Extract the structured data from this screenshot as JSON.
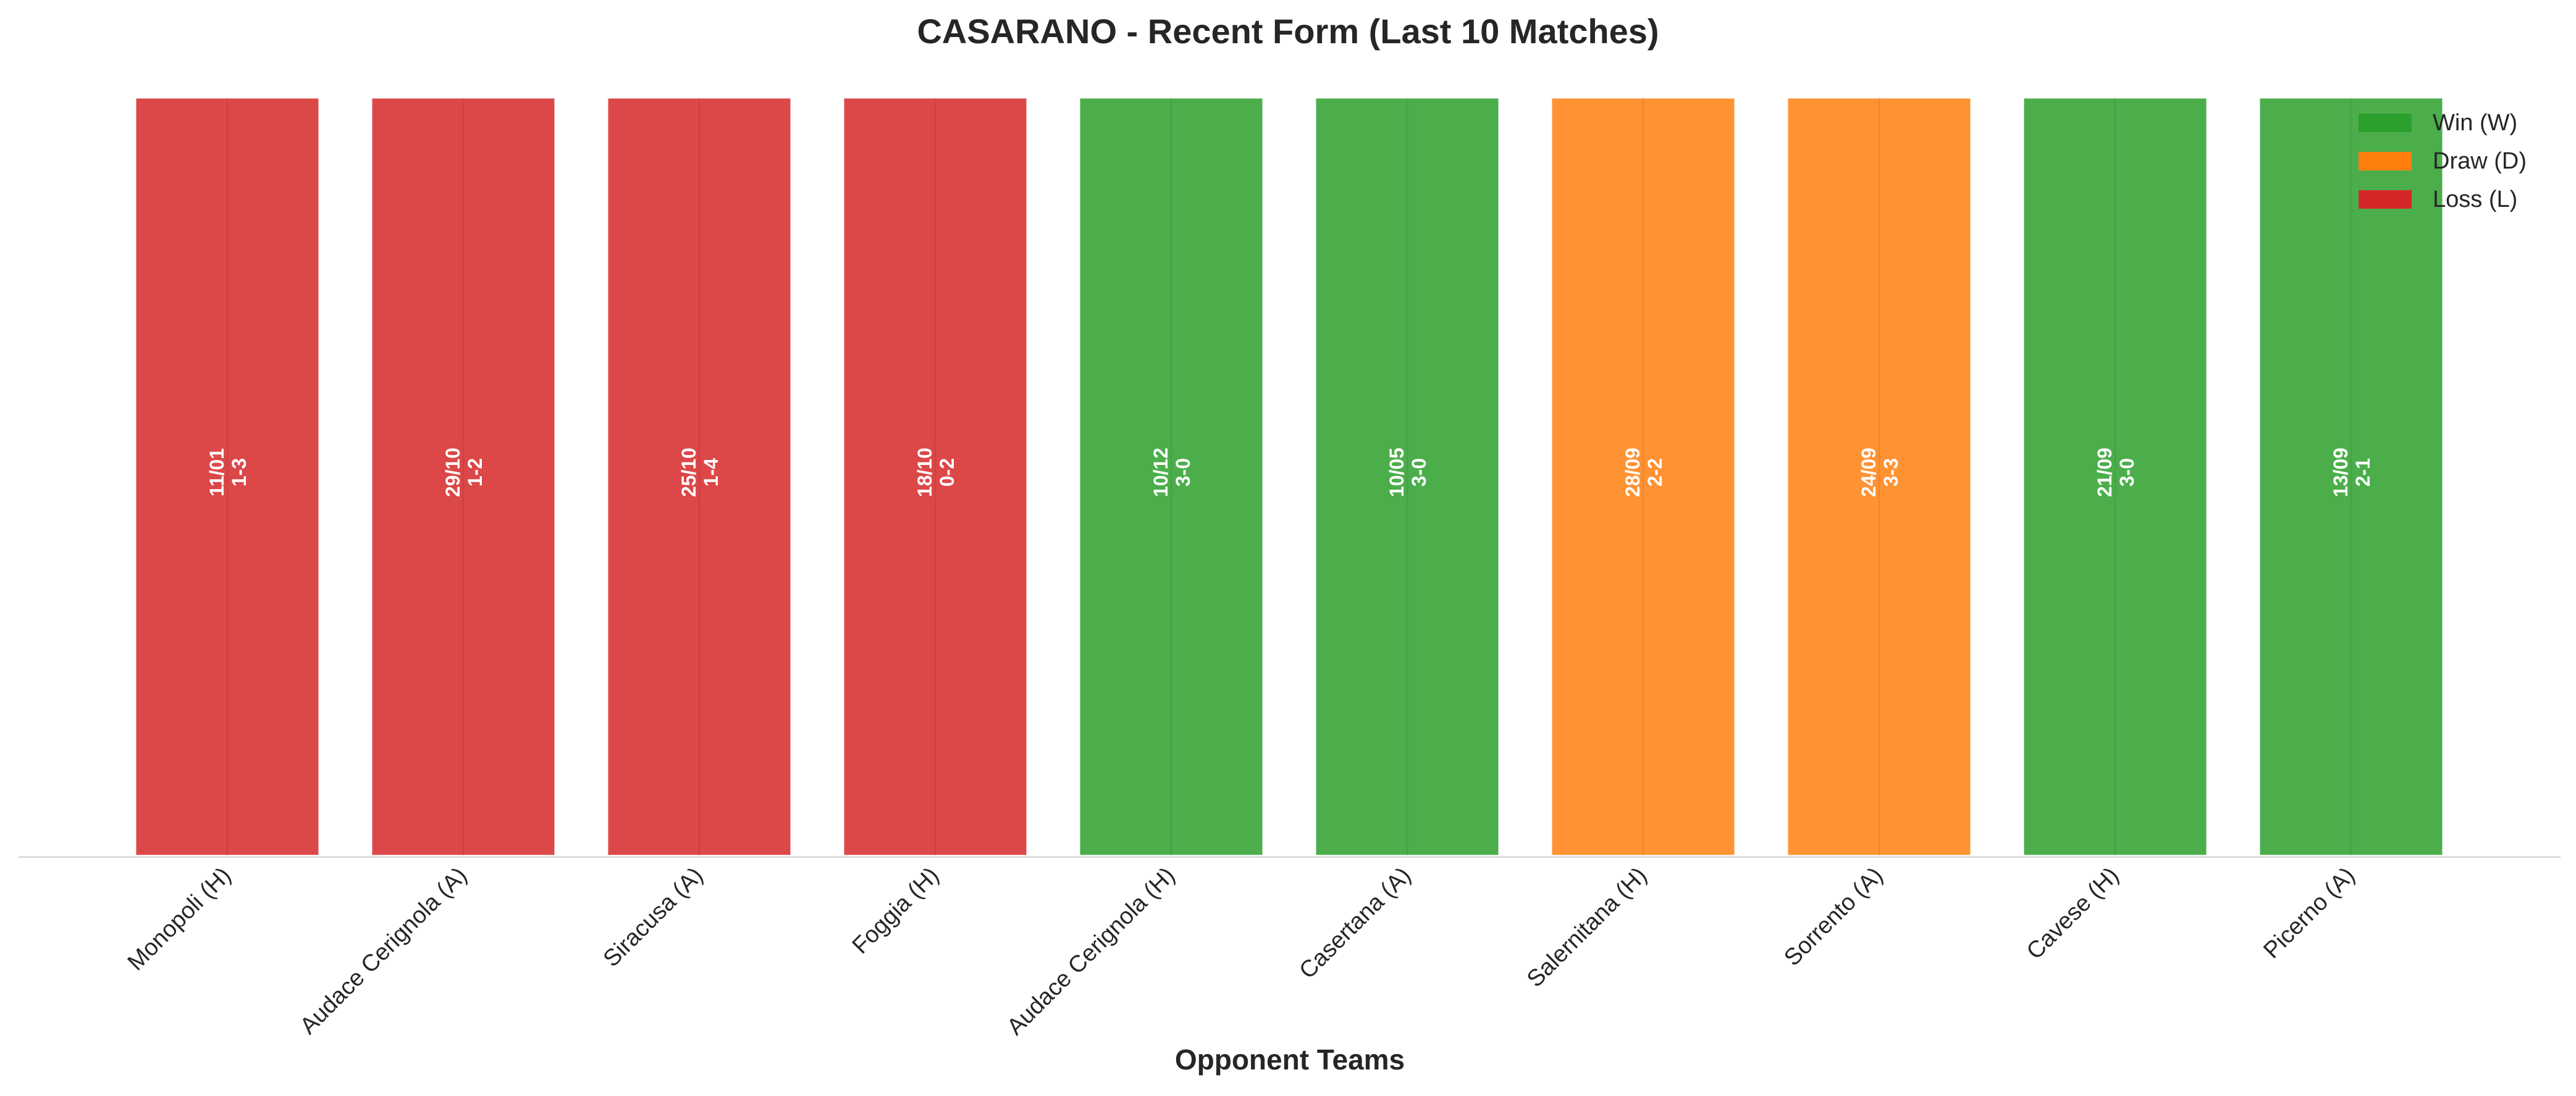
{
  "chart_data": {
    "type": "bar",
    "title": "CASARANO - Recent Form (Last 10 Matches)",
    "xlabel": "Opponent Teams",
    "ylabel": "",
    "categories": [
      "Monopoli (H)",
      "Audace Cerignola (A)",
      "Siracusa (A)",
      "Foggia (H)",
      "Audace Cerignola (H)",
      "Casertana (A)",
      "Salernitana (H)",
      "Sorrento (A)",
      "Cavese (H)",
      "Picerno (A)"
    ],
    "values": [
      1,
      1,
      1,
      1,
      1,
      1,
      1,
      1,
      1,
      1
    ],
    "results": [
      "L",
      "L",
      "L",
      "L",
      "W",
      "W",
      "D",
      "D",
      "W",
      "W"
    ],
    "dates": [
      "11/01",
      "29/10",
      "25/10",
      "18/10",
      "10/12",
      "10/05",
      "28/09",
      "24/09",
      "21/09",
      "13/09"
    ],
    "scores": [
      "1-3",
      "1-2",
      "1-4",
      "0-2",
      "3-0",
      "3-0",
      "2-2",
      "3-3",
      "3-0",
      "2-1"
    ],
    "ylim": [
      0,
      1
    ],
    "grid": false,
    "legend": {
      "position": "top-right",
      "entries": [
        {
          "key": "W",
          "label": "Win (W)"
        },
        {
          "key": "D",
          "label": "Draw (D)"
        },
        {
          "key": "L",
          "label": "Loss (L)"
        }
      ]
    },
    "colors": {
      "W": "#2ca02c",
      "D": "#ff7f0e",
      "L": "#d62728",
      "legend_W": "#2ca02c",
      "legend_D": "#ff7f0e",
      "legend_L": "#d62728"
    }
  }
}
